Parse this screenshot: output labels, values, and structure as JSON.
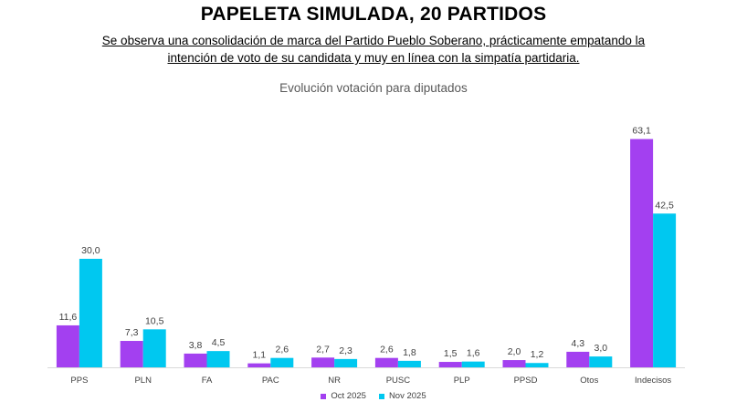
{
  "header": {
    "title": "PAPELETA SIMULADA, 20 PARTIDOS",
    "subtitle_line1": "Se observa una consolidación de marca del Partido Pueblo Soberano, prácticamente empatando la",
    "subtitle_line2": "intención de voto de su candidata y muy en línea con la simpatía partidaria."
  },
  "chart_data": {
    "type": "bar",
    "title": "Evolución votación para diputados",
    "categories": [
      "PPS",
      "PLN",
      "FA",
      "PAC",
      "NR",
      "PUSC",
      "PLP",
      "PPSD",
      "Otos",
      "Indecisos"
    ],
    "series": [
      {
        "name": "Oct 2025",
        "color": "#a340f0",
        "values": [
          11.6,
          7.3,
          3.8,
          1.1,
          2.7,
          2.6,
          1.5,
          2.0,
          4.3,
          63.1
        ],
        "labels": [
          "11,6",
          "7,3",
          "3,8",
          "1,1",
          "2,7",
          "2,6",
          "1,5",
          "2,0",
          "4,3",
          "63,1"
        ]
      },
      {
        "name": "Nov 2025",
        "color": "#00c8f0",
        "values": [
          30.0,
          10.5,
          4.5,
          2.6,
          2.3,
          1.8,
          1.6,
          1.2,
          3.0,
          42.5
        ],
        "labels": [
          "30,0",
          "10,5",
          "4,5",
          "2,6",
          "2,3",
          "1,8",
          "1,6",
          "1,2",
          "3,0",
          "42,5"
        ]
      }
    ],
    "ylim": [
      0,
      70
    ],
    "legend_position": "bottom",
    "grid": false
  }
}
